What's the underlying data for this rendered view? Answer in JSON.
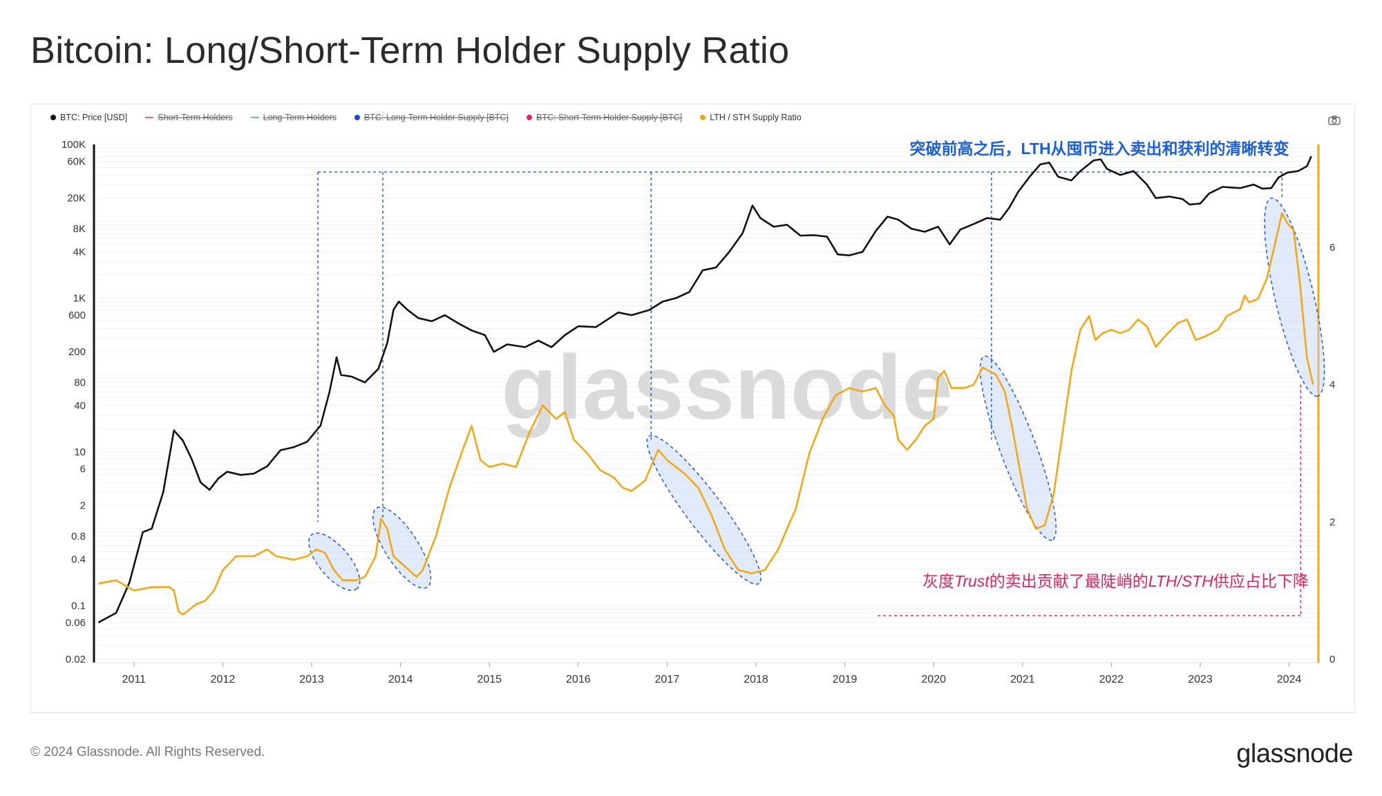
{
  "page": {
    "title": "Bitcoin: Long/Short-Term Holder Supply Ratio",
    "copyright": "© 2024 Glassnode. All Rights Reserved.",
    "brand": "glassnode",
    "watermark": "glassnode"
  },
  "legend": [
    {
      "label": "BTC: Price [USD]",
      "color": "#111111",
      "style": "dot",
      "struck": false
    },
    {
      "label": "Short-Term Holders",
      "color": "#e8677a",
      "style": "line",
      "struck": true
    },
    {
      "label": "Long-Term Holders",
      "color": "#7aa6e8",
      "style": "line",
      "struck": true
    },
    {
      "label": "BTC: Long-Term Holder Supply [BTC]",
      "color": "#2244dd",
      "style": "dot",
      "struck": true
    },
    {
      "label": "BTC: Short-Term Holder Supply [BTC]",
      "color": "#e0245e",
      "style": "dot",
      "struck": true
    },
    {
      "label": "LTH / STH Supply Ratio",
      "color": "#f2a713",
      "style": "dot",
      "struck": false
    }
  ],
  "icons": {
    "camera": "camera-icon"
  },
  "annotations": {
    "top": "突破前高之后，LTH从囤币进入卖出和获利的清晰转变",
    "bottom_prefix": "灰度",
    "bottom_italic1": "Trust",
    "bottom_middle": "的卖出贡献了最陡峭的",
    "bottom_italic2": "LTH/STH",
    "bottom_suffix": "供应占比下降",
    "top_color": "#1a5fe0",
    "bottom_color": "#e0245e"
  },
  "chart_data": {
    "type": "line",
    "x_ticks": [
      "2011",
      "2012",
      "2013",
      "2014",
      "2015",
      "2016",
      "2017",
      "2018",
      "2019",
      "2020",
      "2021",
      "2022",
      "2023",
      "2024"
    ],
    "y_left_ticks": [
      "100K",
      "60K",
      "20K",
      "8K",
      "4K",
      "1K",
      "600",
      "200",
      "80",
      "40",
      "10",
      "6",
      "2",
      "0.8",
      "0.4",
      "0.1",
      "0.06",
      "0.02"
    ],
    "y_left_scale": "log",
    "y_left_range": [
      0.02,
      100000
    ],
    "y_right_ticks": [
      "0",
      "2",
      "4",
      "6"
    ],
    "y_right_range": [
      0,
      7.5
    ],
    "grid": true,
    "series": [
      {
        "name": "BTC: Price [USD]",
        "axis": "left",
        "color": "#111111",
        "points": [
          [
            2010.6,
            0.06
          ],
          [
            2010.8,
            0.08
          ],
          [
            2010.95,
            0.2
          ],
          [
            2011.1,
            0.9
          ],
          [
            2011.2,
            1.0
          ],
          [
            2011.33,
            3.0
          ],
          [
            2011.45,
            19
          ],
          [
            2011.55,
            14
          ],
          [
            2011.65,
            8
          ],
          [
            2011.75,
            4
          ],
          [
            2011.85,
            3.2
          ],
          [
            2011.95,
            4.5
          ],
          [
            2012.05,
            5.5
          ],
          [
            2012.2,
            5.0
          ],
          [
            2012.35,
            5.2
          ],
          [
            2012.5,
            6.5
          ],
          [
            2012.65,
            10.5
          ],
          [
            2012.8,
            11.5
          ],
          [
            2012.95,
            13.5
          ],
          [
            2013.1,
            22
          ],
          [
            2013.2,
            60
          ],
          [
            2013.28,
            170
          ],
          [
            2013.33,
            100
          ],
          [
            2013.45,
            95
          ],
          [
            2013.6,
            80
          ],
          [
            2013.75,
            120
          ],
          [
            2013.85,
            260
          ],
          [
            2013.92,
            700
          ],
          [
            2013.98,
            900
          ],
          [
            2014.08,
            700
          ],
          [
            2014.2,
            550
          ],
          [
            2014.35,
            500
          ],
          [
            2014.5,
            600
          ],
          [
            2014.65,
            470
          ],
          [
            2014.8,
            380
          ],
          [
            2014.95,
            330
          ],
          [
            2015.05,
            200
          ],
          [
            2015.2,
            250
          ],
          [
            2015.4,
            230
          ],
          [
            2015.55,
            280
          ],
          [
            2015.7,
            230
          ],
          [
            2015.85,
            330
          ],
          [
            2016.0,
            430
          ],
          [
            2016.2,
            420
          ],
          [
            2016.45,
            650
          ],
          [
            2016.6,
            600
          ],
          [
            2016.8,
            700
          ],
          [
            2016.95,
            900
          ],
          [
            2017.1,
            1000
          ],
          [
            2017.25,
            1200
          ],
          [
            2017.4,
            2300
          ],
          [
            2017.55,
            2500
          ],
          [
            2017.7,
            4000
          ],
          [
            2017.85,
            7000
          ],
          [
            2017.96,
            16000
          ],
          [
            2018.05,
            11000
          ],
          [
            2018.2,
            8500
          ],
          [
            2018.35,
            9000
          ],
          [
            2018.5,
            6500
          ],
          [
            2018.65,
            6600
          ],
          [
            2018.8,
            6300
          ],
          [
            2018.92,
            3700
          ],
          [
            2019.05,
            3600
          ],
          [
            2019.2,
            4000
          ],
          [
            2019.35,
            7500
          ],
          [
            2019.48,
            11500
          ],
          [
            2019.6,
            10500
          ],
          [
            2019.75,
            8000
          ],
          [
            2019.9,
            7300
          ],
          [
            2020.05,
            8500
          ],
          [
            2020.18,
            5000
          ],
          [
            2020.3,
            7800
          ],
          [
            2020.45,
            9200
          ],
          [
            2020.6,
            11000
          ],
          [
            2020.75,
            10500
          ],
          [
            2020.85,
            15000
          ],
          [
            2020.95,
            24000
          ],
          [
            2021.08,
            38000
          ],
          [
            2021.2,
            55000
          ],
          [
            2021.3,
            58000
          ],
          [
            2021.4,
            38000
          ],
          [
            2021.55,
            34000
          ],
          [
            2021.65,
            45000
          ],
          [
            2021.8,
            62000
          ],
          [
            2021.88,
            64000
          ],
          [
            2021.95,
            48000
          ],
          [
            2022.1,
            40000
          ],
          [
            2022.25,
            45000
          ],
          [
            2022.4,
            30000
          ],
          [
            2022.5,
            20000
          ],
          [
            2022.65,
            21000
          ],
          [
            2022.8,
            19500
          ],
          [
            2022.88,
            16500
          ],
          [
            2023.0,
            17000
          ],
          [
            2023.1,
            23000
          ],
          [
            2023.25,
            28000
          ],
          [
            2023.45,
            27000
          ],
          [
            2023.6,
            30000
          ],
          [
            2023.7,
            26500
          ],
          [
            2023.8,
            27000
          ],
          [
            2023.88,
            37000
          ],
          [
            2023.98,
            43000
          ],
          [
            2024.1,
            45000
          ],
          [
            2024.2,
            52000
          ],
          [
            2024.25,
            70000
          ]
        ]
      },
      {
        "name": "LTH / STH Supply Ratio",
        "axis": "right",
        "color": "#f2a713",
        "points": [
          [
            2010.6,
            1.1
          ],
          [
            2010.8,
            1.15
          ],
          [
            2011.0,
            1.0
          ],
          [
            2011.2,
            1.05
          ],
          [
            2011.4,
            1.05
          ],
          [
            2011.45,
            1.0
          ],
          [
            2011.5,
            0.7
          ],
          [
            2011.55,
            0.65
          ],
          [
            2011.7,
            0.8
          ],
          [
            2011.8,
            0.85
          ],
          [
            2011.9,
            1.0
          ],
          [
            2012.0,
            1.3
          ],
          [
            2012.15,
            1.5
          ],
          [
            2012.35,
            1.5
          ],
          [
            2012.5,
            1.6
          ],
          [
            2012.6,
            1.5
          ],
          [
            2012.8,
            1.45
          ],
          [
            2012.95,
            1.5
          ],
          [
            2013.05,
            1.6
          ],
          [
            2013.15,
            1.55
          ],
          [
            2013.25,
            1.3
          ],
          [
            2013.35,
            1.15
          ],
          [
            2013.5,
            1.15
          ],
          [
            2013.6,
            1.2
          ],
          [
            2013.72,
            1.5
          ],
          [
            2013.78,
            2.05
          ],
          [
            2013.85,
            1.9
          ],
          [
            2013.92,
            1.5
          ],
          [
            2014.05,
            1.35
          ],
          [
            2014.18,
            1.2
          ],
          [
            2014.25,
            1.3
          ],
          [
            2014.4,
            1.8
          ],
          [
            2014.55,
            2.5
          ],
          [
            2014.7,
            3.05
          ],
          [
            2014.8,
            3.4
          ],
          [
            2014.9,
            2.9
          ],
          [
            2015.0,
            2.8
          ],
          [
            2015.15,
            2.85
          ],
          [
            2015.3,
            2.8
          ],
          [
            2015.45,
            3.3
          ],
          [
            2015.6,
            3.7
          ],
          [
            2015.75,
            3.5
          ],
          [
            2015.85,
            3.6
          ],
          [
            2015.95,
            3.2
          ],
          [
            2016.1,
            3.0
          ],
          [
            2016.25,
            2.75
          ],
          [
            2016.4,
            2.65
          ],
          [
            2016.5,
            2.5
          ],
          [
            2016.6,
            2.45
          ],
          [
            2016.75,
            2.6
          ],
          [
            2016.85,
            2.9
          ],
          [
            2016.9,
            3.05
          ],
          [
            2017.0,
            2.9
          ],
          [
            2017.2,
            2.7
          ],
          [
            2017.35,
            2.5
          ],
          [
            2017.5,
            2.1
          ],
          [
            2017.65,
            1.6
          ],
          [
            2017.8,
            1.3
          ],
          [
            2017.95,
            1.25
          ],
          [
            2018.1,
            1.3
          ],
          [
            2018.25,
            1.6
          ],
          [
            2018.45,
            2.2
          ],
          [
            2018.6,
            3.0
          ],
          [
            2018.75,
            3.5
          ],
          [
            2018.9,
            3.85
          ],
          [
            2019.05,
            3.95
          ],
          [
            2019.2,
            3.9
          ],
          [
            2019.35,
            3.95
          ],
          [
            2019.45,
            3.7
          ],
          [
            2019.55,
            3.55
          ],
          [
            2019.6,
            3.2
          ],
          [
            2019.7,
            3.05
          ],
          [
            2019.8,
            3.2
          ],
          [
            2019.9,
            3.4
          ],
          [
            2020.0,
            3.5
          ],
          [
            2020.05,
            4.1
          ],
          [
            2020.12,
            4.2
          ],
          [
            2020.2,
            3.95
          ],
          [
            2020.35,
            3.95
          ],
          [
            2020.45,
            4.0
          ],
          [
            2020.55,
            4.25
          ],
          [
            2020.62,
            4.2
          ],
          [
            2020.7,
            4.15
          ],
          [
            2020.8,
            3.9
          ],
          [
            2020.88,
            3.4
          ],
          [
            2020.95,
            2.9
          ],
          [
            2021.05,
            2.2
          ],
          [
            2021.15,
            1.9
          ],
          [
            2021.25,
            1.95
          ],
          [
            2021.35,
            2.4
          ],
          [
            2021.45,
            3.3
          ],
          [
            2021.55,
            4.2
          ],
          [
            2021.65,
            4.8
          ],
          [
            2021.75,
            5.0
          ],
          [
            2021.82,
            4.65
          ],
          [
            2021.9,
            4.75
          ],
          [
            2022.0,
            4.8
          ],
          [
            2022.1,
            4.75
          ],
          [
            2022.2,
            4.8
          ],
          [
            2022.3,
            4.95
          ],
          [
            2022.4,
            4.85
          ],
          [
            2022.5,
            4.55
          ],
          [
            2022.6,
            4.7
          ],
          [
            2022.75,
            4.9
          ],
          [
            2022.85,
            4.95
          ],
          [
            2022.95,
            4.65
          ],
          [
            2023.05,
            4.7
          ],
          [
            2023.2,
            4.8
          ],
          [
            2023.3,
            5.0
          ],
          [
            2023.45,
            5.1
          ],
          [
            2023.5,
            5.3
          ],
          [
            2023.55,
            5.2
          ],
          [
            2023.65,
            5.25
          ],
          [
            2023.75,
            5.55
          ],
          [
            2023.85,
            6.1
          ],
          [
            2023.92,
            6.5
          ],
          [
            2023.98,
            6.35
          ],
          [
            2024.05,
            6.25
          ],
          [
            2024.12,
            5.5
          ],
          [
            2024.2,
            4.4
          ],
          [
            2024.27,
            4.0
          ]
        ]
      }
    ]
  }
}
